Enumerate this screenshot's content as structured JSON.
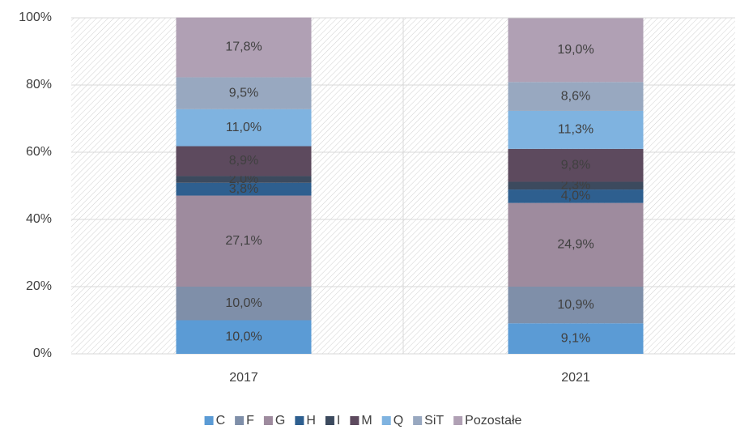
{
  "chart_data": {
    "type": "stacked_bar",
    "categories": [
      "2017",
      "2021"
    ],
    "series": [
      {
        "name": "C",
        "color": "#5b9bd5",
        "values": [
          10.0,
          9.1
        ],
        "value_labels": [
          "10,0%",
          "9,1%"
        ]
      },
      {
        "name": "F",
        "color": "#7f8fa9",
        "values": [
          10.0,
          10.9
        ],
        "value_labels": [
          "10,0%",
          "10,9%"
        ]
      },
      {
        "name": "G",
        "color": "#9e8b9e",
        "values": [
          27.1,
          24.9
        ],
        "value_labels": [
          "27,1%",
          "24,9%"
        ]
      },
      {
        "name": "H",
        "color": "#2e5f8f",
        "values": [
          3.8,
          4.0
        ],
        "value_labels": [
          "3,8%",
          "4,0%"
        ]
      },
      {
        "name": "I",
        "color": "#3c4a5e",
        "values": [
          2.0,
          2.3
        ],
        "value_labels": [
          "2,0%",
          "2,3%"
        ]
      },
      {
        "name": "M",
        "color": "#5d4a5e",
        "values": [
          8.9,
          9.8
        ],
        "value_labels": [
          "8,9%",
          "9,8%"
        ]
      },
      {
        "name": "Q",
        "color": "#7fb3e0",
        "values": [
          11.0,
          11.3
        ],
        "value_labels": [
          "11,0%",
          "11,3%"
        ]
      },
      {
        "name": "SiT",
        "color": "#98a8c0",
        "values": [
          9.5,
          8.6
        ],
        "value_labels": [
          "9,5%",
          "8,6%"
        ]
      },
      {
        "name": "Pozostałe",
        "color": "#b0a0b4",
        "values": [
          17.8,
          19.0
        ],
        "value_labels": [
          "17,8%",
          "19,0%"
        ]
      }
    ],
    "ylim": [
      0,
      100
    ],
    "yticks": [
      {
        "value": 0,
        "label": "0%"
      },
      {
        "value": 20,
        "label": "20%"
      },
      {
        "value": 40,
        "label": "40%"
      },
      {
        "value": 60,
        "label": "60%"
      },
      {
        "value": 80,
        "label": "80%"
      },
      {
        "value": 100,
        "label": "100%"
      }
    ],
    "grid": true,
    "legend": "bottom"
  }
}
